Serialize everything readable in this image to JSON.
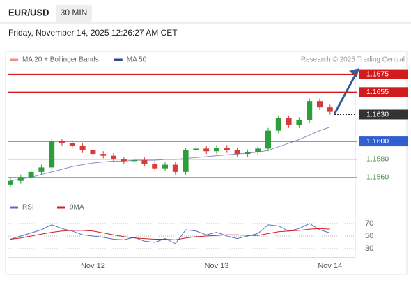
{
  "header": {
    "symbol": "EUR/USD",
    "timeframe": "30 MIN",
    "datetime": "Friday, November 14, 2025 12:26:27 AM CET"
  },
  "chart_data": {
    "type": "candlestick",
    "credit": "Research © 2025 Trading Central",
    "categories": [
      null,
      null,
      null,
      null,
      null,
      null,
      null,
      null,
      "Nov 12",
      null,
      null,
      null,
      null,
      null,
      null,
      null,
      null,
      null,
      null,
      null,
      "Nov 13",
      null,
      null,
      null,
      null,
      null,
      null,
      null,
      null,
      null,
      null,
      "Nov 14"
    ],
    "open": [
      1.1552,
      1.1556,
      1.156,
      1.1566,
      1.1571,
      1.16,
      1.1598,
      1.1595,
      1.159,
      1.1586,
      1.1584,
      1.158,
      1.1578,
      1.1579,
      1.1575,
      1.157,
      1.1574,
      1.1566,
      1.159,
      1.1592,
      1.1589,
      1.1593,
      1.159,
      1.1586,
      1.1588,
      1.1592,
      1.1612,
      1.1626,
      1.1618,
      1.1624,
      1.1645,
      1.1638
    ],
    "high": [
      1.1559,
      1.1563,
      1.1569,
      1.1574,
      1.1603,
      1.1603,
      1.1601,
      1.1598,
      1.1593,
      1.1589,
      1.1587,
      1.1583,
      1.1582,
      1.1582,
      1.1578,
      1.1577,
      1.1577,
      1.1593,
      1.1595,
      1.1595,
      1.1596,
      1.1596,
      1.1593,
      1.1591,
      1.1595,
      1.1615,
      1.1629,
      1.1629,
      1.1627,
      1.1648,
      1.1648,
      1.1641
    ],
    "low": [
      1.1549,
      1.1553,
      1.1557,
      1.1563,
      1.1568,
      1.1595,
      1.1592,
      1.1587,
      1.1583,
      1.1581,
      1.1577,
      1.1575,
      1.1575,
      1.1572,
      1.1567,
      1.1567,
      1.1563,
      1.1563,
      1.1587,
      1.1586,
      1.1586,
      1.1587,
      1.1583,
      1.1583,
      1.1585,
      1.1589,
      1.1609,
      1.1615,
      1.1615,
      1.1621,
      1.1635,
      1.163
    ],
    "close": [
      1.1556,
      1.156,
      1.1566,
      1.1571,
      1.16,
      1.1598,
      1.1595,
      1.159,
      1.1586,
      1.1584,
      1.158,
      1.1578,
      1.1579,
      1.1575,
      1.157,
      1.1574,
      1.1566,
      1.159,
      1.1592,
      1.1589,
      1.1593,
      1.159,
      1.1586,
      1.1588,
      1.1592,
      1.1612,
      1.1626,
      1.1618,
      1.1624,
      1.1645,
      1.1638,
      1.1633
    ],
    "up_color": "#2e9e3a",
    "down_color": "#d93a3a",
    "series": [
      {
        "name": "MA 20 + Bollinger Bands",
        "color": "#f08a8a"
      },
      {
        "name": "MA 50",
        "color": "#2f4a8a",
        "values": [
          1.1556,
          1.1558,
          1.156,
          1.1563,
          1.1566,
          1.1569,
          1.1572,
          1.1574,
          1.1576,
          1.1577,
          1.1578,
          1.1578,
          1.1579,
          1.1579,
          1.1579,
          1.158,
          1.158,
          1.1581,
          1.1582,
          1.1583,
          1.1584,
          1.1585,
          1.1586,
          1.1587,
          1.1588,
          1.159,
          1.1594,
          1.1598,
          1.1602,
          1.1607,
          1.1612,
          1.1616
        ]
      }
    ],
    "ylim": [
      1.1548,
      1.1684
    ],
    "levels": [
      {
        "value": 1.1675,
        "label": "1.1675",
        "color": "#d01c1c",
        "boxed": true
      },
      {
        "value": 1.1655,
        "label": "1.1655",
        "color": "#d01c1c",
        "boxed": true
      },
      {
        "value": 1.163,
        "label": "1.1630",
        "color": "#333333",
        "boxed": true
      },
      {
        "value": 1.16,
        "label": "1.1600",
        "color": "#2f5fd0",
        "boxed": true
      },
      {
        "value": 1.158,
        "label": "1.1580",
        "color": "#3a8a3a",
        "boxed": false
      },
      {
        "value": 1.156,
        "label": "1.1560",
        "color": "#3a8a3a",
        "boxed": false
      }
    ],
    "rsi": {
      "ylim": [
        20,
        80
      ],
      "yticks": [
        70,
        50,
        30
      ],
      "series": [
        {
          "name": "RSI",
          "color": "#5470c6",
          "values": [
            45,
            50,
            55,
            60,
            68,
            62,
            58,
            52,
            50,
            48,
            45,
            44,
            48,
            42,
            40,
            46,
            38,
            60,
            58,
            52,
            56,
            50,
            46,
            50,
            54,
            68,
            66,
            58,
            62,
            70,
            60,
            55
          ]
        },
        {
          "name": "9MA",
          "color": "#d02020",
          "values": [
            45,
            47,
            50,
            53,
            56,
            58,
            59,
            59,
            58,
            55,
            52,
            49,
            47,
            46,
            45,
            45,
            44,
            47,
            49,
            50,
            51,
            52,
            52,
            51,
            51,
            54,
            57,
            58,
            59,
            61,
            62,
            61
          ]
        }
      ]
    }
  }
}
